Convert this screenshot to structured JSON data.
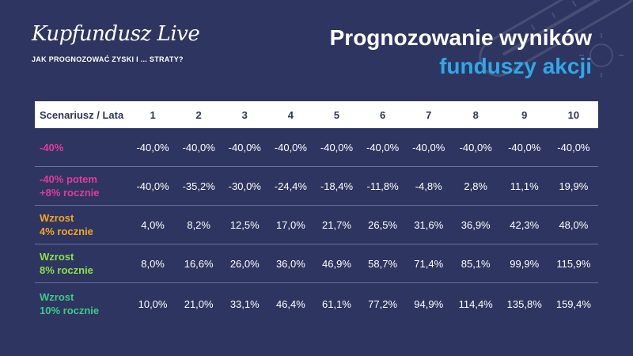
{
  "brand": {
    "logo": "Kupfundusz Live",
    "tagline": "JAK PROGNOZOWAĆ ZYSKI I ... STRATY?"
  },
  "title": {
    "line1": "Prognozowanie wyników",
    "line2": "funduszy akcji"
  },
  "colors": {
    "background": "#2e3560",
    "title_accent": "#2fa8e8",
    "scenario_decline": "#e23b9a",
    "scenario_4pct": "#f5a623",
    "scenario_8pct": "#8be04a",
    "scenario_10pct": "#3ec98a"
  },
  "decor_icons": [
    "thermometer-icon",
    "sun-icon"
  ],
  "table": {
    "corner_header": "Scenariusz / Lata",
    "years": [
      "1",
      "2",
      "3",
      "4",
      "5",
      "6",
      "7",
      "8",
      "9",
      "10"
    ],
    "rows": [
      {
        "label_lines": [
          "-40%"
        ],
        "color": "#e23b9a",
        "values": [
          "-40,0%",
          "-40,0%",
          "-40,0%",
          "-40,0%",
          "-40,0%",
          "-40,0%",
          "-40,0%",
          "-40,0%",
          "-40,0%",
          "-40,0%"
        ]
      },
      {
        "label_lines": [
          "-40% potem",
          "+8% rocznie"
        ],
        "color": "#e23b9a",
        "values": [
          "-40,0%",
          "-35,2%",
          "-30,0%",
          "-24,4%",
          "-18,4%",
          "-11,8%",
          "-4,8%",
          "2,8%",
          "11,1%",
          "19,9%"
        ]
      },
      {
        "label_lines": [
          "Wzrost",
          "4% rocznie"
        ],
        "color": "#f5a623",
        "values": [
          "4,0%",
          "8,2%",
          "12,5%",
          "17,0%",
          "21,7%",
          "26,5%",
          "31,6%",
          "36,9%",
          "42,3%",
          "48,0%"
        ]
      },
      {
        "label_lines": [
          "Wzrost",
          "8% rocznie"
        ],
        "color": "#8be04a",
        "values": [
          "8,0%",
          "16,6%",
          "26,0%",
          "36,0%",
          "46,9%",
          "58,7%",
          "71,4%",
          "85,1%",
          "99,9%",
          "115,9%"
        ]
      },
      {
        "label_lines": [
          "Wzrost",
          "10% rocznie"
        ],
        "color": "#3ec98a",
        "values": [
          "10,0%",
          "21,0%",
          "33,1%",
          "46,4%",
          "61,1%",
          "77,2%",
          "94,9%",
          "114,4%",
          "135,8%",
          "159,4%"
        ]
      }
    ]
  }
}
